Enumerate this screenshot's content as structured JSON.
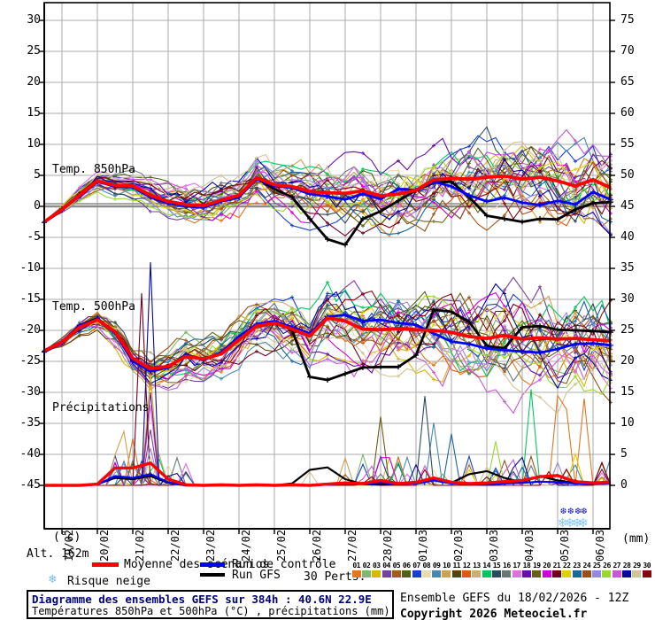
{
  "axes": {
    "left_unit": "(°c)",
    "right_unit": "(mm)",
    "altitude_label": "Alt. 162m",
    "left_ticks": [
      30,
      25,
      20,
      15,
      10,
      5,
      0,
      -5,
      -10,
      -15,
      -20,
      -25,
      -30,
      -35,
      -40,
      -45
    ],
    "right_ticks": [
      75,
      70,
      65,
      60,
      55,
      50,
      45,
      40,
      35,
      30,
      25,
      20,
      15,
      10,
      5,
      0
    ],
    "dates": [
      "19/02",
      "20/02",
      "21/02",
      "22/02",
      "23/02",
      "24/02",
      "25/02",
      "26/02",
      "27/02",
      "28/02",
      "01/03",
      "02/03",
      "03/03",
      "04/03",
      "05/03",
      "06/03"
    ]
  },
  "panels": {
    "t850_label": "Temp. 850hPa",
    "t500_label": "Temp. 500hPa",
    "precip_label": "Précipitations"
  },
  "legend": {
    "mean_label": "Moyenne des scénarios",
    "control_label": "Run de contrôle",
    "gfs_label": "Run GFS",
    "perts_label": "30 Perts.",
    "snow_label": "Risque neige",
    "snow_icon": "snowflake-icon",
    "mean_color": "#ff0000",
    "control_color": "#0000ff",
    "gfs_color": "#000000"
  },
  "perts": {
    "numbers": [
      "01",
      "02",
      "03",
      "04",
      "05",
      "06",
      "07",
      "08",
      "09",
      "10",
      "11",
      "12",
      "13",
      "14",
      "15",
      "16",
      "17",
      "18",
      "19",
      "20",
      "21",
      "22",
      "23",
      "24",
      "25",
      "26",
      "27",
      "28",
      "29",
      "30"
    ],
    "colors": [
      "#e07820",
      "#80b870",
      "#d8b800",
      "#7840a0",
      "#a85818",
      "#506018",
      "#1840d0",
      "#e8dcb0",
      "#4888b0",
      "#d0a050",
      "#584410",
      "#e05818",
      "#c8b070",
      "#00c860",
      "#2c4c5c",
      "#687878",
      "#e070e0",
      "#6810a8",
      "#686010",
      "#d800d8",
      "#700020",
      "#e0d000",
      "#1868a0",
      "#985018",
      "#9488e0",
      "#98d830",
      "#c858d8",
      "#0808a0",
      "#d0c498",
      "#880810"
    ]
  },
  "footer": {
    "title": "Diagramme des ensembles GEFS sur 384h : 40.6N 22.9E",
    "subtitle": "Températures 850hPa et 500hPa (°C) , précipitations (mm)",
    "run_info": "Ensemble GEFS du 18/02/2026 - 12Z",
    "copyright": "Copyright 2026 Meteociel.fr"
  },
  "chart_data": {
    "type": "line",
    "title": "Diagramme des ensembles GEFS sur 384h : 40.6N 22.9E",
    "x_start": "18/02 12Z",
    "x_step_hours": 12,
    "x_total_hours": 384,
    "x_dates": [
      "19/02",
      "20/02",
      "21/02",
      "22/02",
      "23/02",
      "24/02",
      "25/02",
      "26/02",
      "27/02",
      "28/02",
      "01/03",
      "02/03",
      "03/03",
      "04/03",
      "05/03",
      "06/03"
    ],
    "y_left": {
      "unit": "°C",
      "min": -45,
      "max": 30,
      "step": 5
    },
    "y_right": {
      "unit": "mm",
      "min": 0,
      "max": 75,
      "step": 5
    },
    "grid": true,
    "series": {
      "t850": {
        "mean": [
          -2.5,
          -0.5,
          1.8,
          4.1,
          3.4,
          3.3,
          1.8,
          0.8,
          0.3,
          0.1,
          1.0,
          1.8,
          4.6,
          3.5,
          3.2,
          2.4,
          2.2,
          2.1,
          2.5,
          1.7,
          2.0,
          2.6,
          4.3,
          4.5,
          4.4,
          4.7,
          4.9,
          4.4,
          4.7,
          4.1,
          3.3,
          4.3,
          3.0
        ],
        "control": [
          -2.6,
          -0.6,
          1.7,
          4.0,
          3.2,
          3.1,
          1.5,
          0.5,
          0.0,
          -0.2,
          0.8,
          1.5,
          4.4,
          3.3,
          3.0,
          2.0,
          1.6,
          1.1,
          2.0,
          1.2,
          2.8,
          2.6,
          4.0,
          3.2,
          1.8,
          0.8,
          1.4,
          0.6,
          0.2,
          0.9,
          0.3,
          2.3,
          1.1
        ],
        "gfs": [
          -2.6,
          -0.4,
          1.9,
          4.1,
          3.3,
          3.2,
          1.6,
          0.6,
          0.1,
          0.0,
          0.9,
          1.6,
          4.5,
          2.8,
          1.5,
          -2.0,
          -5.3,
          -6.2,
          -2.0,
          -0.8,
          0.9,
          2.6,
          3.8,
          4.0,
          1.5,
          -1.5,
          -2.0,
          -2.5,
          -2.0,
          -2.1,
          -0.5,
          0.5,
          0.7
        ]
      },
      "t500": {
        "mean": [
          -23.3,
          -21.9,
          -19.5,
          -18.3,
          -20.2,
          -24.5,
          -26.2,
          -25.8,
          -24.2,
          -24.6,
          -23.8,
          -21.5,
          -19.3,
          -18.8,
          -19.8,
          -20.9,
          -18.0,
          -18.5,
          -19.8,
          -19.9,
          -19.7,
          -19.9,
          -20.0,
          -20.3,
          -21.0,
          -21.3,
          -20.8,
          -21.4,
          -21.2,
          -21.4,
          -21.3,
          -21.5,
          -21.7
        ],
        "control": [
          -23.5,
          -22.0,
          -19.3,
          -18.2,
          -20.4,
          -25.0,
          -26.6,
          -26.0,
          -24.0,
          -24.8,
          -23.5,
          -21.0,
          -19.0,
          -18.5,
          -19.5,
          -20.5,
          -17.8,
          -17.5,
          -18.5,
          -18.3,
          -18.8,
          -19.1,
          -20.5,
          -21.8,
          -22.2,
          -22.9,
          -23.2,
          -23.4,
          -23.6,
          -23.0,
          -22.2,
          -22.1,
          -22.4
        ],
        "gfs": [
          -23.4,
          -21.9,
          -19.2,
          -18.1,
          -20.3,
          -24.8,
          -26.4,
          -25.9,
          -23.9,
          -24.7,
          -23.6,
          -21.2,
          -19.2,
          -18.6,
          -20.0,
          -27.5,
          -28.0,
          -27.0,
          -26.0,
          -25.9,
          -25.9,
          -24.0,
          -16.7,
          -17.0,
          -18.6,
          -22.5,
          -22.9,
          -19.5,
          -19.3,
          -19.9,
          -20.0,
          -20.1,
          -20.3
        ]
      },
      "precip_mm": {
        "mean": [
          0,
          0,
          0,
          0.2,
          2.8,
          2.8,
          3.6,
          1.0,
          0.1,
          0,
          0.1,
          0,
          0.1,
          0,
          0.1,
          0,
          0.2,
          0.4,
          0.3,
          0.8,
          0.3,
          0.5,
          1.2,
          0.5,
          0.3,
          0.4,
          0.6,
          0.8,
          1.4,
          1.6,
          0.6,
          0.4,
          0.5
        ],
        "control": [
          0,
          0,
          0,
          0.1,
          1.5,
          1.2,
          1.8,
          0.5,
          0,
          0,
          0,
          0,
          0,
          0,
          0,
          0,
          0.1,
          0.2,
          0.2,
          0.4,
          0.2,
          0.3,
          0.8,
          0.3,
          0.2,
          0.2,
          0.3,
          0.4,
          0.6,
          0.5,
          0.3,
          0.2,
          0.3
        ],
        "gfs": [
          0,
          0,
          0,
          0.2,
          1.2,
          1.0,
          1.5,
          0.4,
          0,
          0,
          0,
          0,
          0,
          0,
          0.3,
          2.5,
          2.9,
          1.0,
          0.2,
          0.1,
          0.3,
          0.5,
          0.9,
          0.4,
          1.8,
          2.3,
          1.2,
          0.5,
          1.5,
          0.8,
          0.4,
          0.3,
          0.4
        ],
        "member_spikes": [
          {
            "member": 10,
            "t": 52,
            "mm": 8.7
          },
          {
            "member": 1,
            "t": 57,
            "mm": 7.6
          },
          {
            "member": 6,
            "t": 60,
            "mm": 3.5
          },
          {
            "member": 16,
            "t": 62,
            "mm": 4.0
          },
          {
            "member": 21,
            "t": 66,
            "mm": 31.0
          },
          {
            "member": 17,
            "t": 69,
            "mm": 12.9
          },
          {
            "member": 4,
            "t": 70,
            "mm": 9.0
          },
          {
            "member": 25,
            "t": 70,
            "mm": 6.0
          },
          {
            "member": 18,
            "t": 71,
            "mm": 15.0
          },
          {
            "member": 28,
            "t": 73,
            "mm": 36.0
          },
          {
            "member": 3,
            "t": 74,
            "mm": 18.0
          },
          {
            "member": 13,
            "t": 76,
            "mm": 5.0
          },
          {
            "member": 23,
            "t": 93,
            "mm": 2.0
          },
          {
            "member": 29,
            "t": 177,
            "mm": 2.2
          },
          {
            "member": 19,
            "t": 228,
            "mm": 11.1
          },
          {
            "member": 15,
            "t": 258,
            "mm": 14.4
          },
          {
            "member": 9,
            "t": 264,
            "mm": 10.1
          },
          {
            "member": 23,
            "t": 276,
            "mm": 8.3
          },
          {
            "member": 7,
            "t": 288,
            "mm": 4.7
          },
          {
            "member": 24,
            "t": 312,
            "mm": 4.0
          },
          {
            "member": 26,
            "t": 306,
            "mm": 7.1
          },
          {
            "member": 14,
            "t": 330,
            "mm": 15.5
          },
          {
            "member": 30,
            "t": 342,
            "mm": 2.2
          },
          {
            "member": 1,
            "t": 348,
            "mm": 14.5
          },
          {
            "member": 30,
            "t": 352,
            "mm": 2.6
          },
          {
            "member": 1,
            "t": 354,
            "mm": 12.3
          },
          {
            "member": 22,
            "t": 360,
            "mm": 5.1
          },
          {
            "member": 1,
            "t": 366,
            "mm": 14.0
          }
        ]
      }
    },
    "ensemble": {
      "members": 30,
      "t850_spread": [
        0.2,
        4.6
      ],
      "t500_spread": [
        0.25,
        5.2
      ],
      "precip_windows": [
        [
          48,
          96,
          0.5,
          5
        ],
        [
          204,
          384,
          0.28,
          5
        ]
      ]
    },
    "snow_risk_markers": {
      "t": [
        352,
        357,
        362,
        366
      ]
    },
    "zero_line_c": 0
  },
  "style_colors": {
    "grid": "#ababab",
    "zero_line": "#8c8c8c",
    "frame": "#000000",
    "snow_top": "#1a1acc",
    "snow_bottom": "#86c8f0"
  }
}
